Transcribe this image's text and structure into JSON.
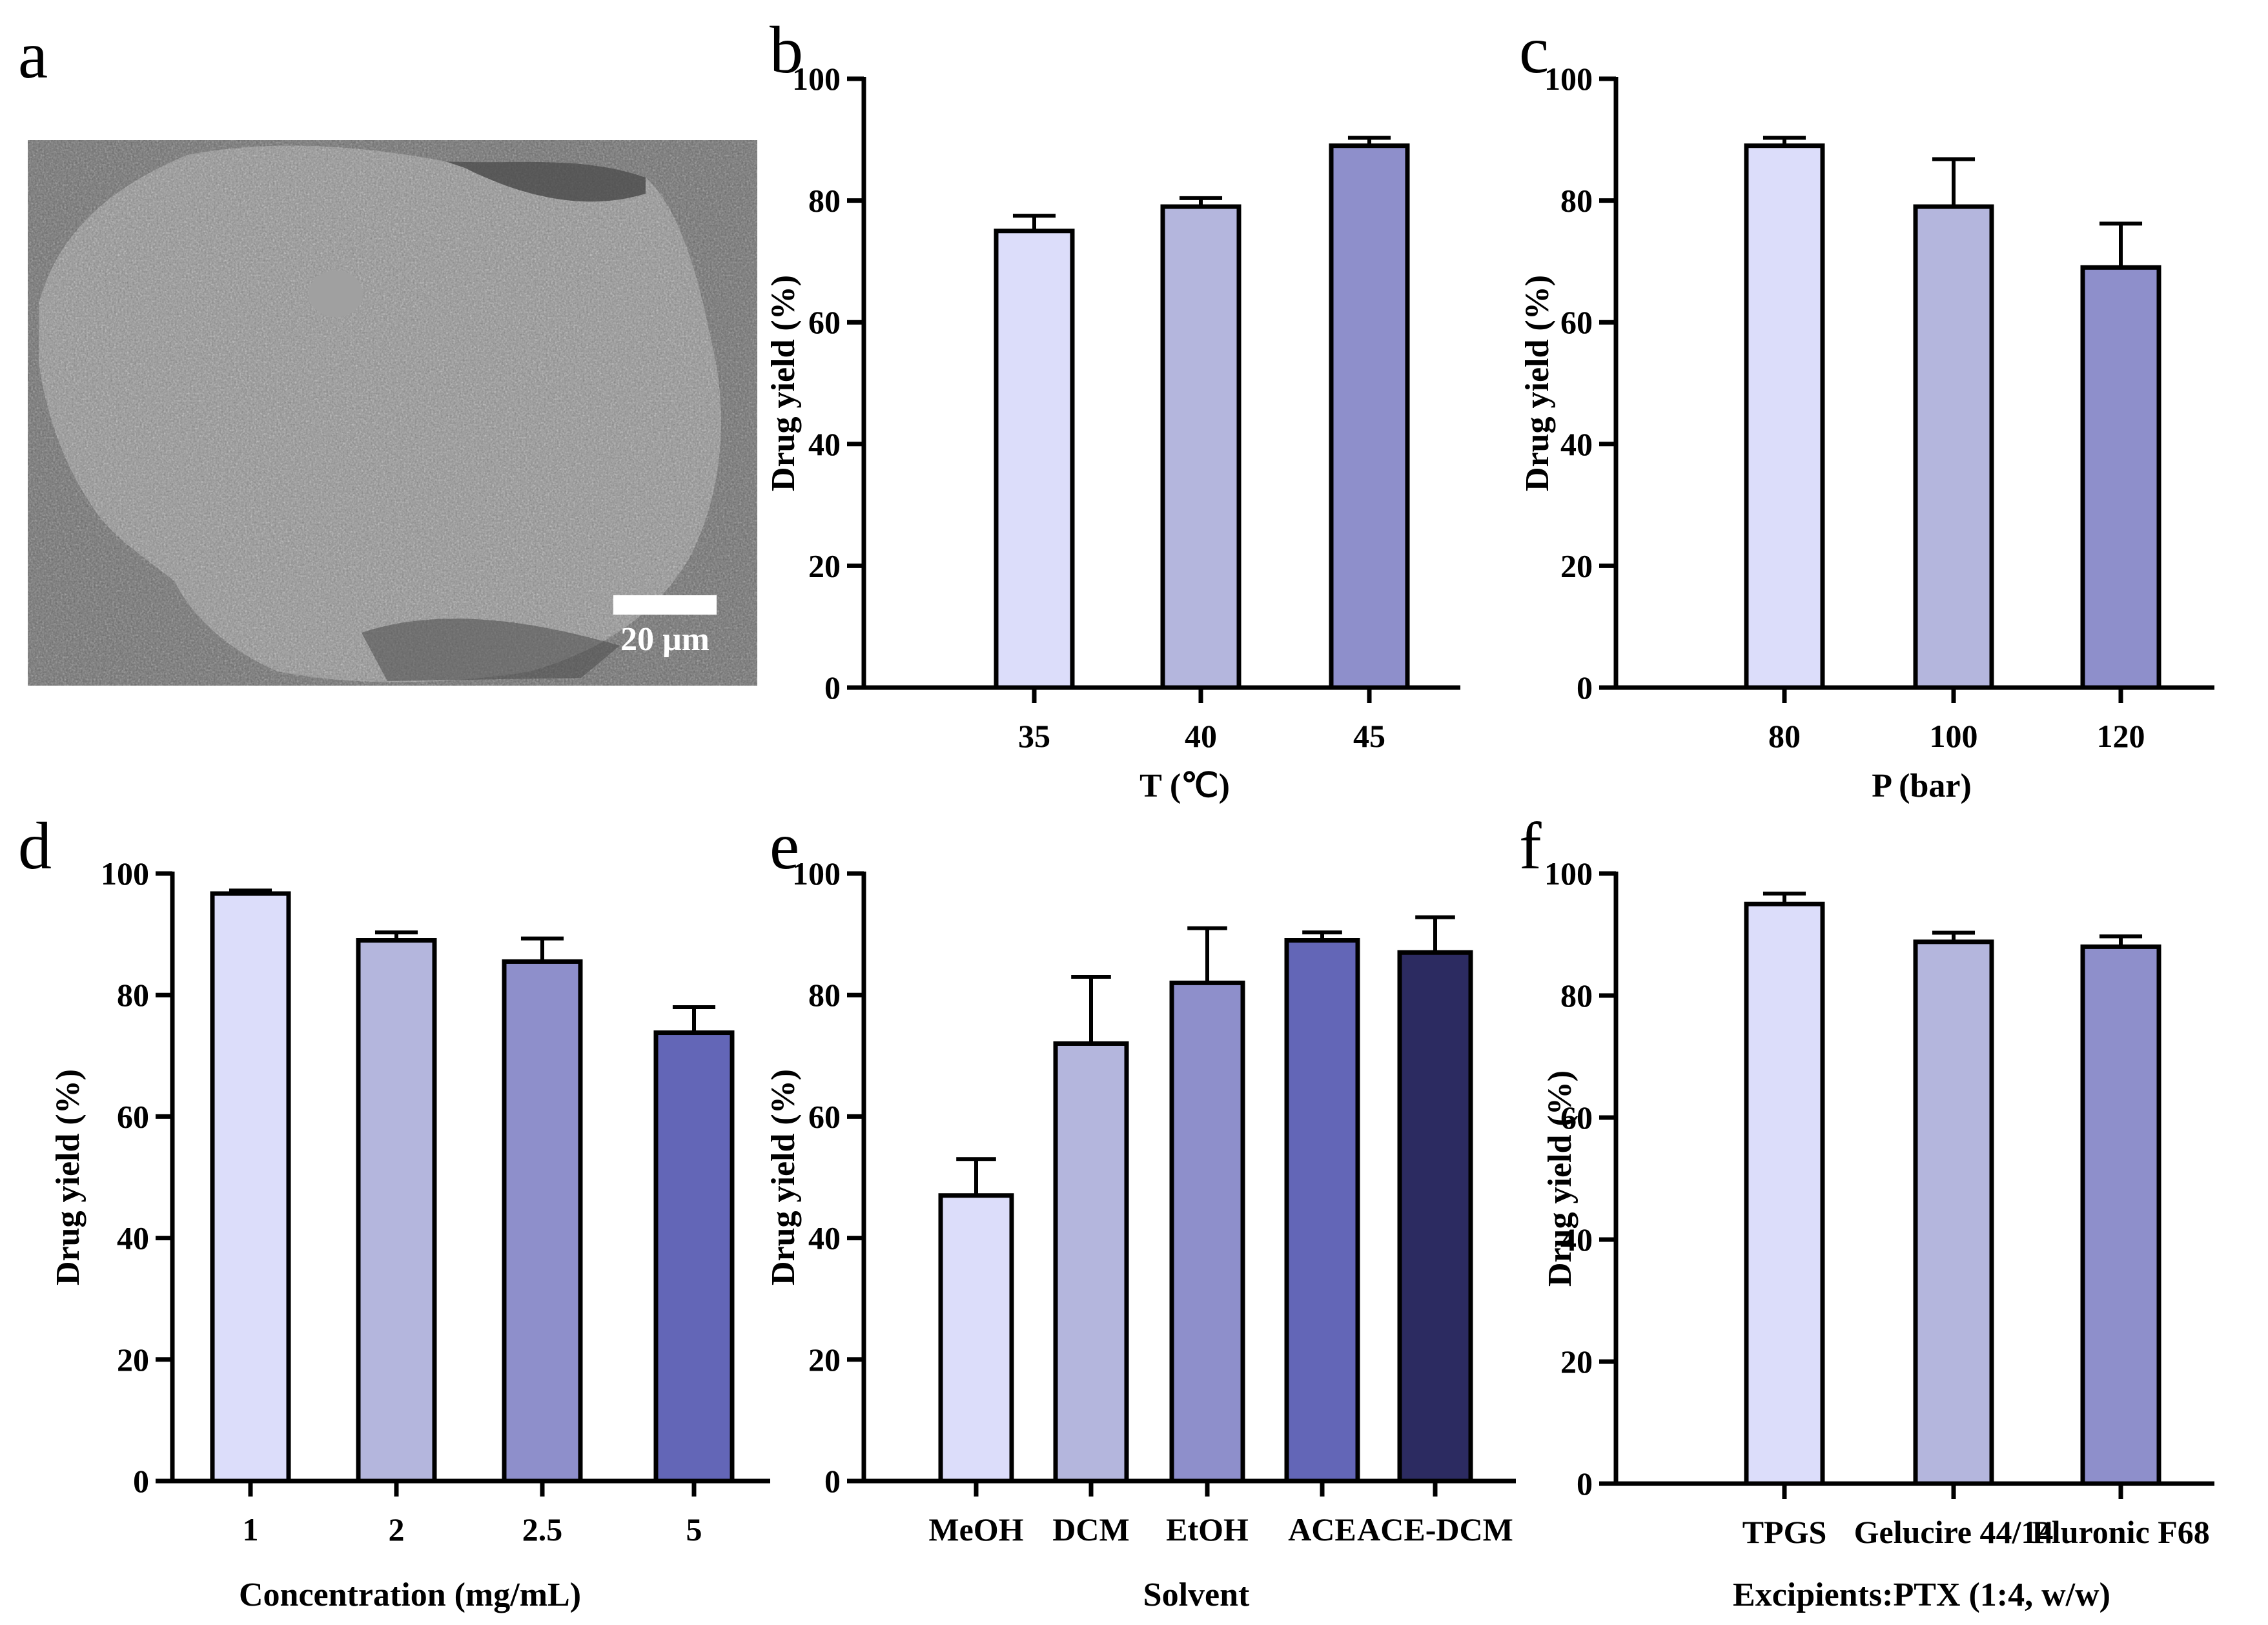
{
  "panel_letters": {
    "a": "a",
    "b": "b",
    "c": "c",
    "d": "d",
    "e": "e",
    "f": "f"
  },
  "sem_panel": {
    "label": "a",
    "scale_bar_text": "20 μm",
    "description_icon": "sem-micrograph-image"
  },
  "colors": {
    "c1": "#dcddfa",
    "c2": "#b4b6dd",
    "c3": "#8e8fcb",
    "c4": "#6366b7",
    "c5": "#2c2b61",
    "axis": "#000000"
  },
  "chart_data": [
    {
      "id": "b",
      "type": "bar",
      "label": "b",
      "categories": [
        "35",
        "40",
        "45"
      ],
      "values": [
        75,
        79,
        89
      ],
      "errors": [
        2.5,
        1.4,
        1.3
      ],
      "title": "",
      "xlabel": "T (℃)",
      "ylabel": "Drug yield (%)",
      "ylim": [
        0,
        100
      ],
      "yticks": [
        "0",
        "20",
        "40",
        "60",
        "80",
        "100"
      ],
      "colors": [
        "c1",
        "c2",
        "c3"
      ]
    },
    {
      "id": "c",
      "type": "bar",
      "label": "c",
      "categories": [
        "80",
        "100",
        "120"
      ],
      "values": [
        89,
        79,
        69
      ],
      "errors": [
        1.3,
        7.8,
        7.2
      ],
      "title": "",
      "xlabel": "P (bar)",
      "ylabel": "Drug yield (%)",
      "ylim": [
        0,
        100
      ],
      "yticks": [
        "0",
        "20",
        "40",
        "60",
        "80",
        "100"
      ],
      "colors": [
        "c1",
        "c2",
        "c3"
      ]
    },
    {
      "id": "d",
      "type": "bar",
      "label": "d",
      "categories": [
        "1",
        "2",
        "2.5",
        "5"
      ],
      "values": [
        96.7,
        89,
        85.5,
        73.8
      ],
      "errors": [
        0.5,
        1.3,
        3.8,
        4.2
      ],
      "title": "",
      "xlabel": "Concentration (mg/mL)",
      "ylabel": "Drug yield (%)",
      "ylim": [
        0,
        100
      ],
      "yticks": [
        "0",
        "20",
        "40",
        "60",
        "80",
        "100"
      ],
      "colors": [
        "c1",
        "c2",
        "c3",
        "c4"
      ]
    },
    {
      "id": "e",
      "type": "bar",
      "label": "e",
      "categories": [
        "MeOH",
        "DCM",
        "EtOH",
        "ACE",
        "ACE-DCM"
      ],
      "values": [
        47,
        72,
        82,
        89,
        87
      ],
      "errors": [
        6.0,
        11.0,
        9.0,
        1.3,
        5.8
      ],
      "title": "",
      "xlabel": "Solvent",
      "ylabel": "Drug yield (%)",
      "ylim": [
        0,
        100
      ],
      "yticks": [
        "0",
        "20",
        "40",
        "60",
        "80",
        "100"
      ],
      "colors": [
        "c1",
        "c2",
        "c3",
        "c4",
        "c5"
      ]
    },
    {
      "id": "f",
      "type": "bar",
      "label": "f",
      "categories": [
        "TPGS",
        "Gelucire 44/14",
        "Pluronic F68"
      ],
      "values": [
        95,
        88.8,
        88
      ],
      "errors": [
        1.7,
        1.5,
        1.7
      ],
      "title": "",
      "xlabel": "Excipients:PTX (1:4, w/w)",
      "ylabel": "Drug yield (%)",
      "ylim": [
        0,
        100
      ],
      "yticks": [
        "0",
        "20",
        "40",
        "60",
        "80",
        "100"
      ],
      "colors": [
        "c1",
        "c2",
        "c3"
      ]
    }
  ]
}
